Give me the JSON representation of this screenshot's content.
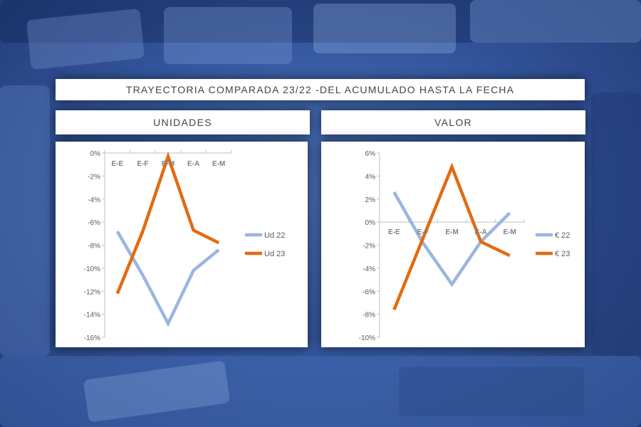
{
  "page_title": "TRAYECTORIA COMPARADA 23/22 -DEL ACUMULADO HASTA LA FECHA",
  "colors": {
    "ud22": "#9ab6e0",
    "ud23": "#e26b12"
  },
  "chart_data": [
    {
      "type": "line",
      "title": "UNIDADES",
      "categories": [
        "E-E",
        "E-F",
        "E-M",
        "E-A",
        "E-M"
      ],
      "y_ticks": [
        "0%",
        "-2%",
        "-4%",
        "-6%",
        "-8%",
        "-10%",
        "-12%",
        "-14%",
        "-16%"
      ],
      "ylim": [
        -16,
        0
      ],
      "grid": false,
      "legend": "right",
      "series": [
        {
          "name": "Ud 22",
          "values": [
            -6.8,
            -10.6,
            -14.8,
            -10.2,
            -8.4
          ]
        },
        {
          "name": "Ud 23",
          "values": [
            -12.2,
            -6.8,
            -0.3,
            -6.7,
            -7.8
          ]
        }
      ]
    },
    {
      "type": "line",
      "title": "VALOR",
      "categories": [
        "E-E",
        "E-F",
        "E-M",
        "E-A",
        "E-M"
      ],
      "y_ticks": [
        "6%",
        "4%",
        "2%",
        "0%",
        "-2%",
        "-4%",
        "-6%",
        "-8%",
        "-10%"
      ],
      "ylim": [
        -10,
        6
      ],
      "grid": false,
      "legend": "right",
      "series": [
        {
          "name": "€ 22",
          "values": [
            2.6,
            -1.8,
            -5.4,
            -1.7,
            0.8
          ]
        },
        {
          "name": "€ 23",
          "values": [
            -7.6,
            -1.4,
            4.8,
            -1.7,
            -2.9
          ]
        }
      ]
    }
  ]
}
